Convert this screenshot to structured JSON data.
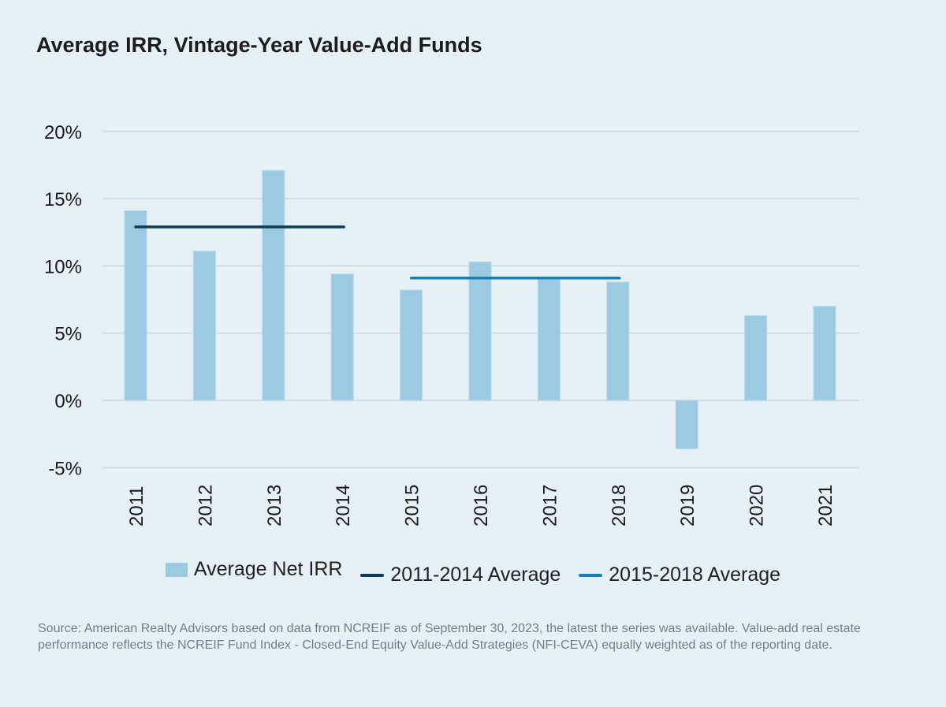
{
  "chart_data": {
    "type": "bar",
    "title": "Average IRR, Vintage-Year Value-Add Funds",
    "categories": [
      "2011",
      "2012",
      "2013",
      "2014",
      "2015",
      "2016",
      "2017",
      "2018",
      "2019",
      "2020",
      "2021"
    ],
    "series": [
      {
        "name": "Average Net IRR",
        "type": "bar",
        "values": [
          14.1,
          11.1,
          17.1,
          9.4,
          8.2,
          10.3,
          9.0,
          8.8,
          -3.6,
          6.3,
          7.0
        ],
        "color": "#9ccae0"
      },
      {
        "name": "2011-2014 Average",
        "type": "line",
        "from": "2011",
        "to": "2014",
        "value": 12.9,
        "color": "#0d3a56"
      },
      {
        "name": "2015-2018 Average",
        "type": "line",
        "from": "2015",
        "to": "2018",
        "value": 9.1,
        "color": "#1a7db5"
      }
    ],
    "yticks": [
      "-5%",
      "0%",
      "5%",
      "10%",
      "15%",
      "20%"
    ],
    "ylim": [
      -5,
      20
    ],
    "grid": true,
    "legend_position": "bottom"
  },
  "source": "Source: American Realty Advisors based on data from NCREIF as of September 30, 2023, the latest the series was available. Value-add real estate performance reflects the NCREIF Fund Index - Closed-End Equity Value-Add Strategies (NFI-CEVA) equally weighted as of the reporting date."
}
